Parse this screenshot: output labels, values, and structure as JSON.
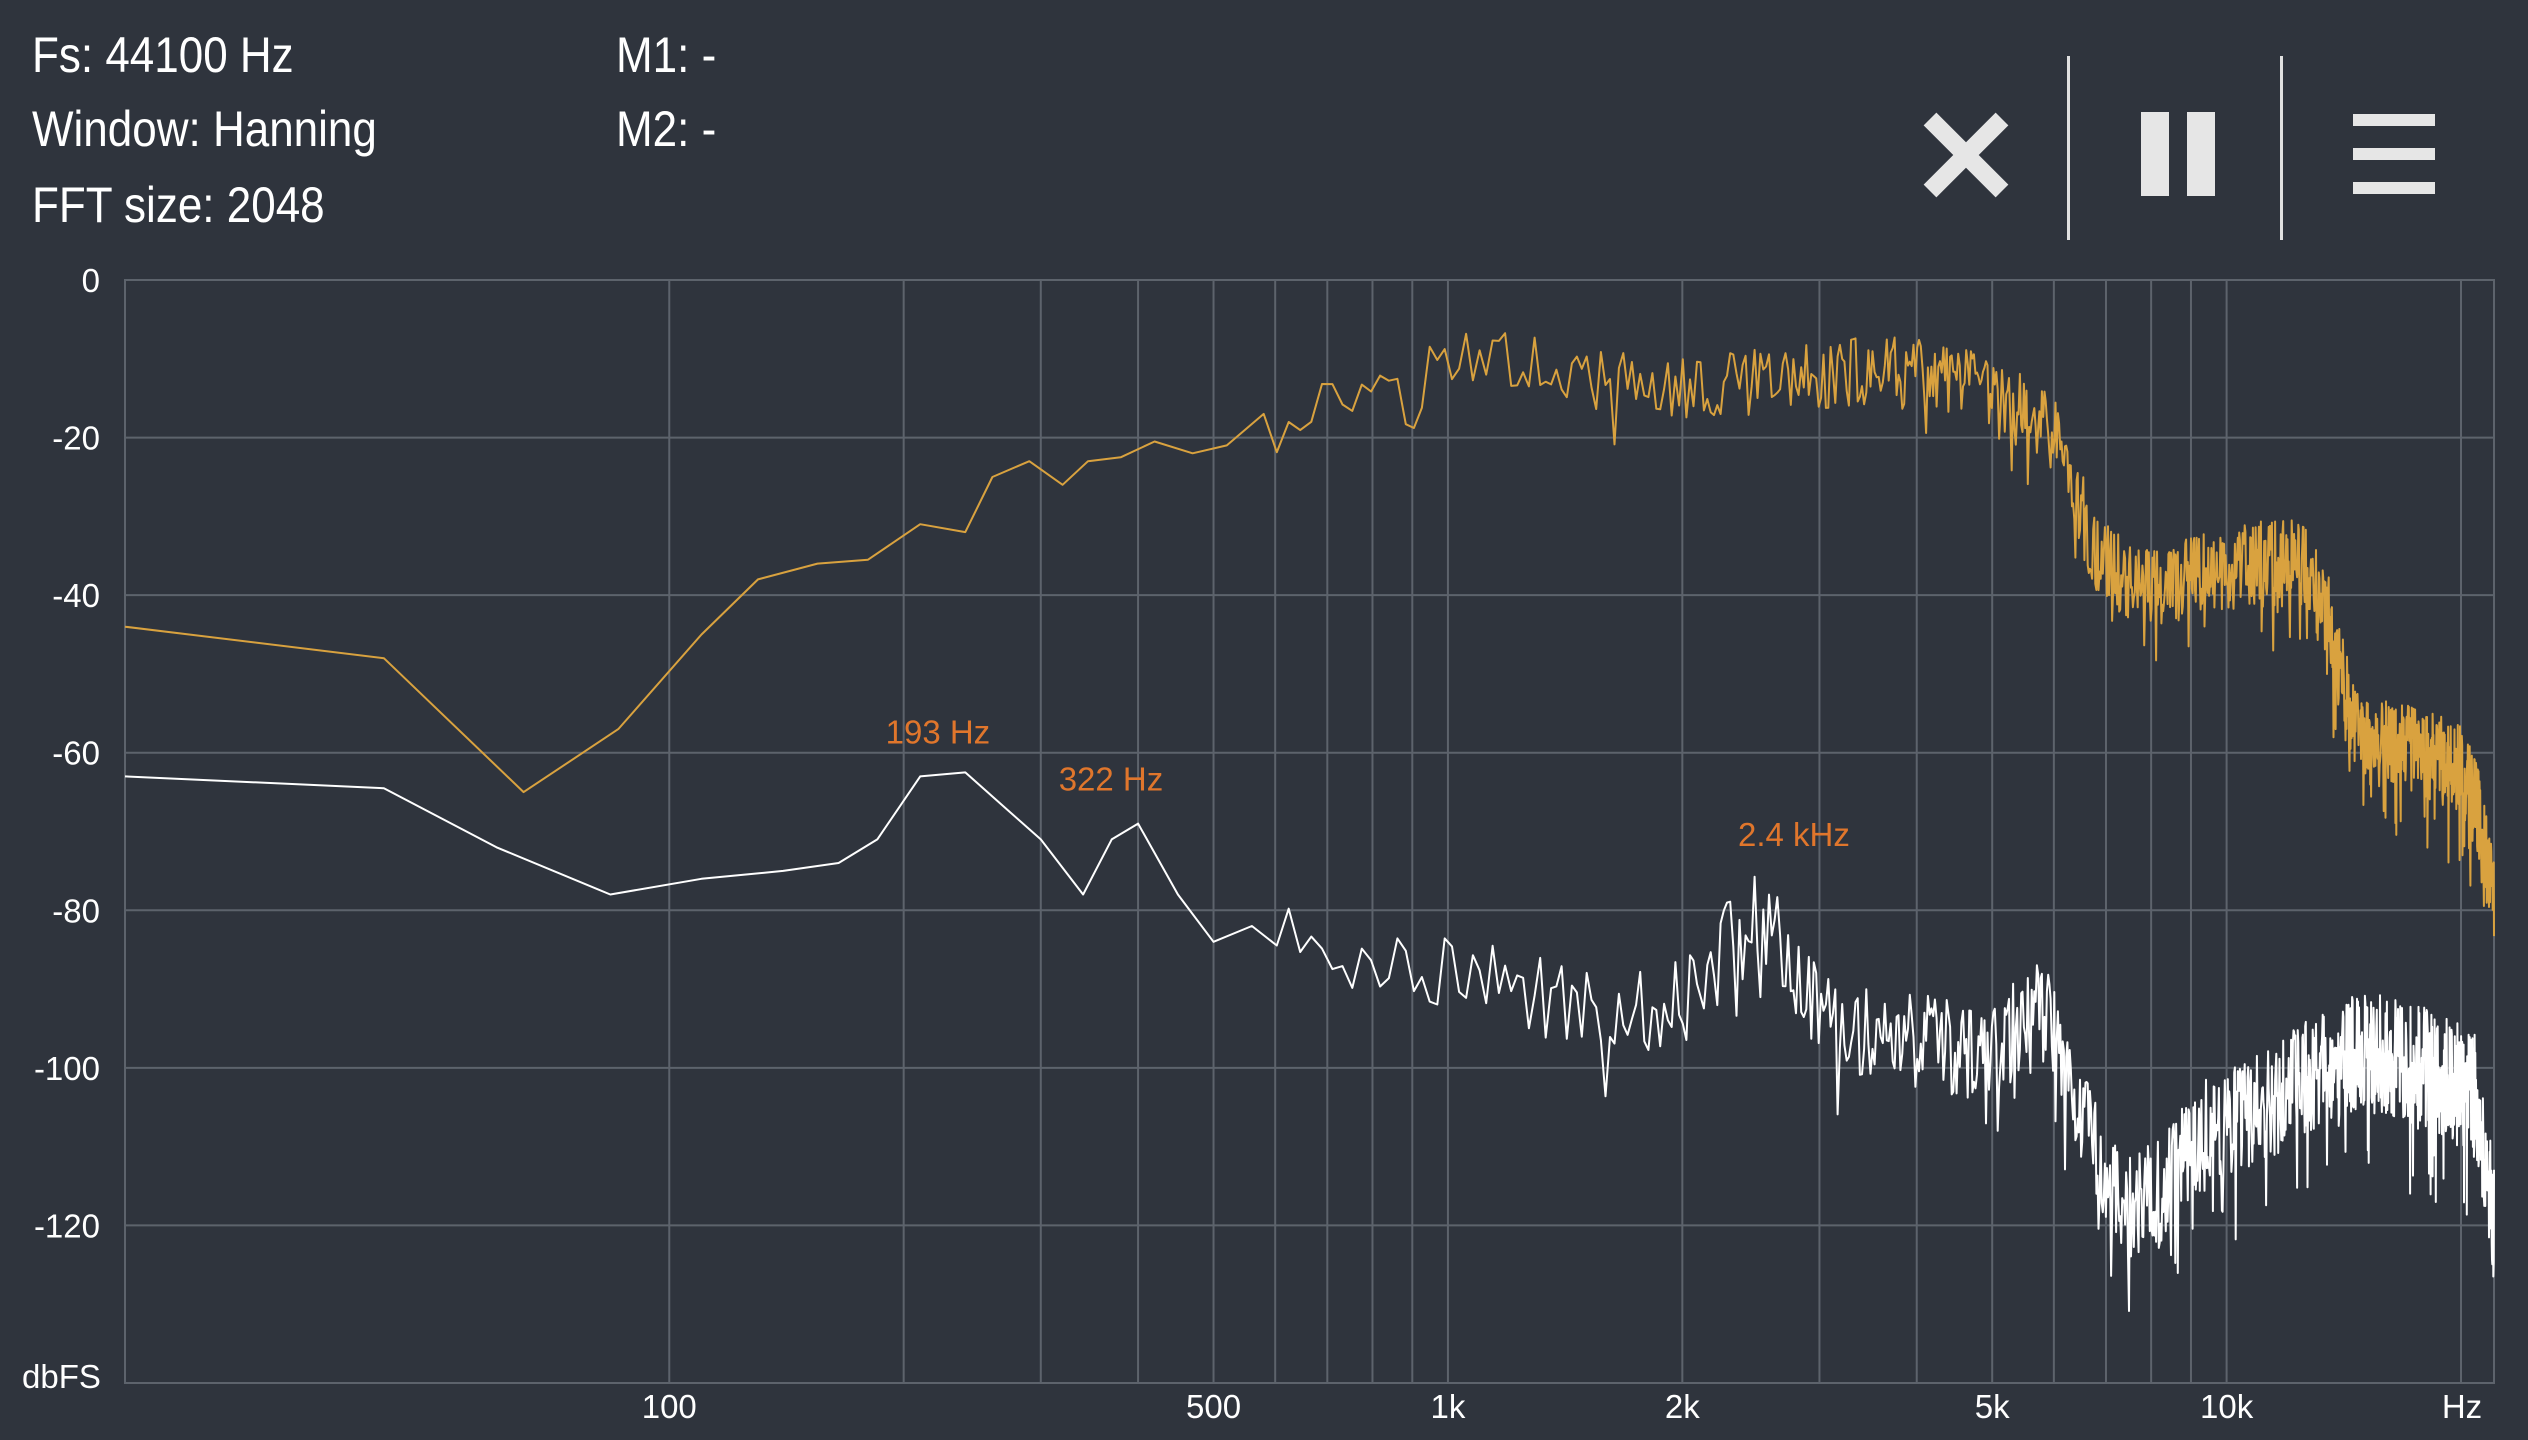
{
  "header": {
    "fs": "Fs: 44100 Hz",
    "window": "Window: Hanning",
    "fft_size": "FFT size: 2048",
    "m1": "M1: -",
    "m2": "M2: -"
  },
  "toolbar": {
    "close_icon": "close-icon",
    "pause_icon": "pause-icon",
    "menu_icon": "menu-icon"
  },
  "colors": {
    "background": "#2f343d",
    "grid": "#5d636c",
    "series_gold": "#d9a23f",
    "series_white": "#ffffff",
    "peak_label": "#e0762c"
  },
  "chart_data": {
    "type": "line",
    "xscale": "log",
    "xlim": [
      20,
      22050
    ],
    "ylim": [
      -140,
      0
    ],
    "ylabel": "dbFS",
    "xunit": "Hz",
    "y_ticks": [
      "0",
      "-20",
      "-40",
      "-60",
      "-80",
      "-100",
      "-120"
    ],
    "x_tick_labels": [
      {
        "freq": 100,
        "label": "100"
      },
      {
        "freq": 500,
        "label": "500"
      },
      {
        "freq": 1000,
        "label": "1k"
      },
      {
        "freq": 2000,
        "label": "2k"
      },
      {
        "freq": 5000,
        "label": "5k"
      },
      {
        "freq": 10000,
        "label": "10k"
      }
    ],
    "x_gridlines": [
      100,
      200,
      300,
      400,
      500,
      600,
      700,
      800,
      900,
      1000,
      2000,
      3000,
      4000,
      5000,
      6000,
      7000,
      8000,
      9000,
      10000,
      20000
    ],
    "series": [
      {
        "color": "#d9a23f",
        "noise": 3,
        "points": [
          [
            20,
            -44
          ],
          [
            43,
            -48
          ],
          [
            65,
            -65
          ],
          [
            86,
            -57
          ],
          [
            110,
            -45
          ],
          [
            130,
            -38
          ],
          [
            155,
            -36
          ],
          [
            180,
            -35.5
          ],
          [
            210,
            -31
          ],
          [
            240,
            -32
          ],
          [
            260,
            -25
          ],
          [
            290,
            -23
          ],
          [
            320,
            -26
          ],
          [
            345,
            -23
          ],
          [
            380,
            -22.5
          ],
          [
            420,
            -20.5
          ],
          [
            470,
            -22
          ],
          [
            520,
            -21
          ],
          [
            580,
            -17
          ],
          [
            650,
            -16
          ],
          [
            730,
            -15
          ],
          [
            820,
            -12.5
          ],
          [
            920,
            -11
          ],
          [
            1050,
            -9.5
          ],
          [
            1200,
            -10
          ],
          [
            1400,
            -11.5
          ],
          [
            1600,
            -13
          ],
          [
            2000,
            -14
          ],
          [
            2500,
            -13
          ],
          [
            3000,
            -12
          ],
          [
            3500,
            -11.5
          ],
          [
            4000,
            -12
          ],
          [
            4700,
            -13.5
          ],
          [
            5200,
            -16
          ],
          [
            5800,
            -18
          ],
          [
            6100,
            -21
          ],
          [
            6400,
            -27
          ],
          [
            6800,
            -35
          ],
          [
            7500,
            -38
          ],
          [
            8200,
            -39
          ],
          [
            9000,
            -38
          ],
          [
            9500,
            -37
          ],
          [
            10000,
            -37
          ],
          [
            11000,
            -36
          ],
          [
            12500,
            -36
          ],
          [
            13500,
            -43
          ],
          [
            14500,
            -56
          ],
          [
            15500,
            -59
          ],
          [
            17000,
            -59
          ],
          [
            19000,
            -61
          ],
          [
            20000,
            -62
          ],
          [
            21000,
            -67
          ],
          [
            22050,
            -79
          ]
        ]
      },
      {
        "color": "#ffffff",
        "noise": 4,
        "points": [
          [
            20,
            -63
          ],
          [
            43,
            -64.5
          ],
          [
            60,
            -72
          ],
          [
            84,
            -78
          ],
          [
            110,
            -76
          ],
          [
            140,
            -75
          ],
          [
            165,
            -74
          ],
          [
            185,
            -71
          ],
          [
            210,
            -63
          ],
          [
            240,
            -62.5
          ],
          [
            270,
            -67
          ],
          [
            300,
            -71
          ],
          [
            340,
            -78
          ],
          [
            370,
            -71
          ],
          [
            400,
            -69
          ],
          [
            450,
            -78
          ],
          [
            500,
            -84
          ],
          [
            560,
            -82
          ],
          [
            650,
            -84
          ],
          [
            750,
            -86
          ],
          [
            850,
            -86
          ],
          [
            950,
            -87
          ],
          [
            1050,
            -88
          ],
          [
            1200,
            -90
          ],
          [
            1350,
            -91
          ],
          [
            1500,
            -92
          ],
          [
            1700,
            -93
          ],
          [
            1900,
            -92
          ],
          [
            2100,
            -88
          ],
          [
            2400,
            -80
          ],
          [
            2600,
            -82
          ],
          [
            2900,
            -91
          ],
          [
            3300,
            -95
          ],
          [
            3800,
            -96
          ],
          [
            4300,
            -97
          ],
          [
            4700,
            -99
          ],
          [
            5200,
            -96
          ],
          [
            5600,
            -93
          ],
          [
            6000,
            -94
          ],
          [
            6400,
            -103
          ],
          [
            7000,
            -113
          ],
          [
            7500,
            -118
          ],
          [
            8200,
            -116
          ],
          [
            8700,
            -111
          ],
          [
            9500,
            -108
          ],
          [
            10500,
            -106
          ],
          [
            12000,
            -103
          ],
          [
            13500,
            -99
          ],
          [
            15500,
            -98
          ],
          [
            18000,
            -100
          ],
          [
            20000,
            -102
          ],
          [
            21000,
            -104
          ],
          [
            22050,
            -120
          ]
        ]
      }
    ],
    "annotations": [
      {
        "label": "193 Hz",
        "freq": 193,
        "db": -62
      },
      {
        "label": "322 Hz",
        "freq": 322,
        "db": -68
      },
      {
        "label": "2.4 kHz",
        "freq": 2400,
        "db": -75
      }
    ]
  }
}
